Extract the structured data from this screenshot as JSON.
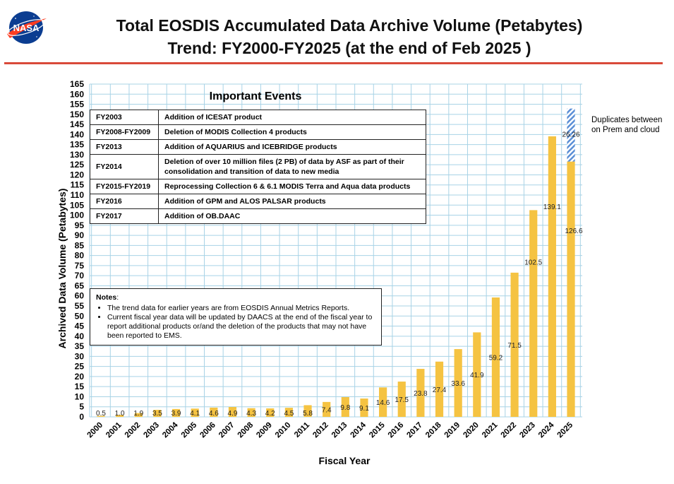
{
  "header": {
    "title_line1": "Total EOSDIS Accumulated Data Archive Volume (Petabytes)",
    "title_line2": "Trend: FY2000-FY2025 (at the end of Feb 2025 )",
    "logo_text": "NASA",
    "rule_color": "#d94a3a"
  },
  "events": {
    "title": "Important Events",
    "rows": [
      {
        "year": "FY2003",
        "text": "Addition of ICESAT product"
      },
      {
        "year": "FY2008-FY2009",
        "text": "Deletion of  MODIS Collection 4 products"
      },
      {
        "year": "FY2013",
        "text": "Addition of AQUARIUS and ICEBRIDGE products"
      },
      {
        "year": "FY2014",
        "text": "Deletion of over 10 million files (2 PB) of data by ASF as part of their consolidation and transition of data to new media"
      },
      {
        "year": "FY2015-FY2019",
        "text": "Reprocessing  Collection 6 & 6.1 MODIS Terra and Aqua data products"
      },
      {
        "year": "FY2016",
        "text": "Addition of GPM and ALOS PALSAR products"
      },
      {
        "year": "FY2017",
        "text": "Addition of OB.DAAC"
      }
    ]
  },
  "notes": {
    "title": "Notes",
    "items": [
      "The trend data for earlier years are from EOSDIS Annual Metrics Reports.",
      "Current fiscal year data will be updated by DAACS at the end of the fiscal year to report additional products or/and the deletion of the products that may not have been reported to EMS."
    ]
  },
  "annotation": {
    "text": "Duplicates between on Prem and cloud"
  },
  "chart_data": {
    "type": "bar",
    "xlabel": "Fiscal Year",
    "ylabel": "Archived Data Volume (Petabytes)",
    "ylim": [
      0,
      165
    ],
    "ytick_step": 5,
    "grid": true,
    "bar_color": "#f5c342",
    "stack_color": "#5b8fd6",
    "categories": [
      "2000",
      "2001",
      "2002",
      "2003",
      "2004",
      "2005",
      "2006",
      "2007",
      "2008",
      "2009",
      "2010",
      "2011",
      "2012",
      "2013",
      "2014",
      "2015",
      "2016",
      "2017",
      "2018",
      "2019",
      "2020",
      "2021",
      "2022",
      "2023",
      "2024",
      "2025"
    ],
    "series": [
      {
        "values": [
          0.5,
          1.0,
          1.9,
          3.5,
          3.9,
          4.1,
          4.6,
          4.9,
          4.3,
          4.2,
          4.5,
          5.8,
          7.4,
          9.8,
          9.1,
          14.6,
          17.5,
          23.8,
          27.4,
          33.6,
          41.9,
          59.2,
          71.5,
          102.5,
          139.1,
          126.6
        ],
        "labels": [
          "0.5",
          "1.0",
          "1.9",
          "3.5",
          "3.9",
          "4.1",
          "4.6",
          "4.9",
          "4.3",
          "4.2",
          "4.5",
          "5.8",
          "7.4",
          "9.8",
          "9.1",
          "14.6",
          "17.5",
          "23.8",
          "27.4",
          "33.6",
          "41.9",
          "59.2",
          "71.5",
          "102.5",
          "139.1",
          "126.6"
        ]
      },
      {
        "name": "Duplicates between on Prem and cloud",
        "category": "2025",
        "value": 26.26,
        "label": "26.26"
      }
    ]
  }
}
